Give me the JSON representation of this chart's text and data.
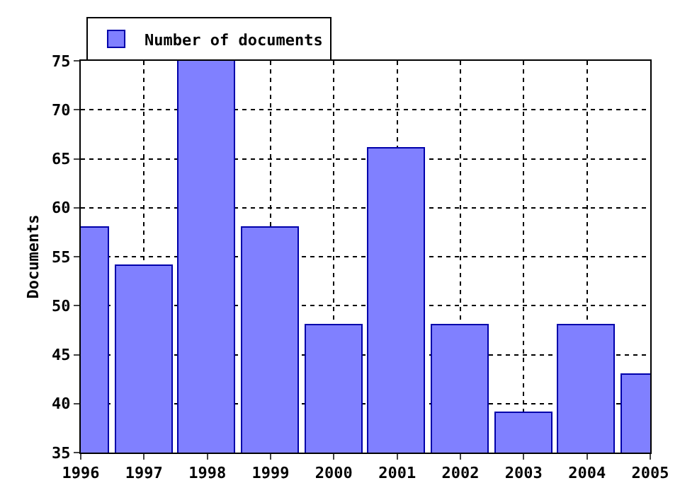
{
  "chart_data": {
    "type": "bar",
    "ylabel": "Documents",
    "x": [
      1996,
      1997,
      1998,
      1999,
      2000,
      2001,
      2002,
      2003,
      2004,
      2005
    ],
    "series": [
      {
        "name": "Number of documents",
        "color": "#8080ff",
        "values": [
          58,
          54,
          75,
          58,
          48,
          66,
          48,
          39,
          48,
          43
        ]
      }
    ],
    "xlim": [
      1996,
      2005
    ],
    "xticks": [
      1996,
      1997,
      1998,
      1999,
      2000,
      2001,
      2002,
      2003,
      2004,
      2005
    ],
    "ylim": [
      35,
      75
    ],
    "yticks": [
      35,
      40,
      45,
      50,
      55,
      60,
      65,
      70,
      75
    ],
    "grid": true,
    "legend": "top left"
  }
}
